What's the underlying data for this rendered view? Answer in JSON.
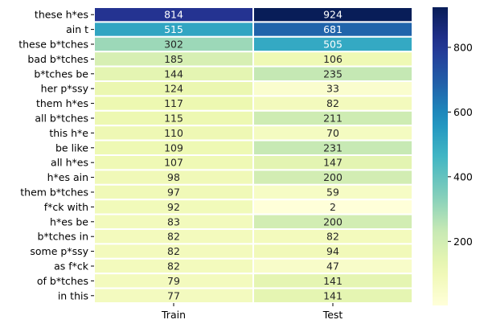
{
  "chart_data": {
    "type": "heatmap",
    "title": "",
    "xlabel": "",
    "ylabel": "",
    "columns": [
      "Train",
      "Test"
    ],
    "rows": [
      "these h*es",
      "ain t",
      "these b*tches",
      "bad b*tches",
      "b*tches be",
      "her p*ssy",
      "them h*es",
      "all b*tches",
      "this h*e",
      "be like",
      "all h*es",
      "h*es ain",
      "them b*tches",
      "f*ck with",
      "h*es be",
      "b*tches in",
      "some p*ssy",
      "as f*ck",
      "of b*tches",
      "in this"
    ],
    "values": [
      [
        814,
        924
      ],
      [
        515,
        681
      ],
      [
        302,
        505
      ],
      [
        185,
        106
      ],
      [
        144,
        235
      ],
      [
        124,
        33
      ],
      [
        117,
        82
      ],
      [
        115,
        211
      ],
      [
        110,
        70
      ],
      [
        109,
        231
      ],
      [
        107,
        147
      ],
      [
        98,
        200
      ],
      [
        97,
        59
      ],
      [
        92,
        2
      ],
      [
        83,
        200
      ],
      [
        82,
        82
      ],
      [
        82,
        94
      ],
      [
        82,
        47
      ],
      [
        79,
        141
      ],
      [
        77,
        141
      ]
    ],
    "colormap": "YlGnBu",
    "colorbar": {
      "range": [
        2,
        924
      ],
      "ticks": [
        200,
        400,
        600,
        800
      ]
    },
    "annotations": true,
    "grid": false
  }
}
